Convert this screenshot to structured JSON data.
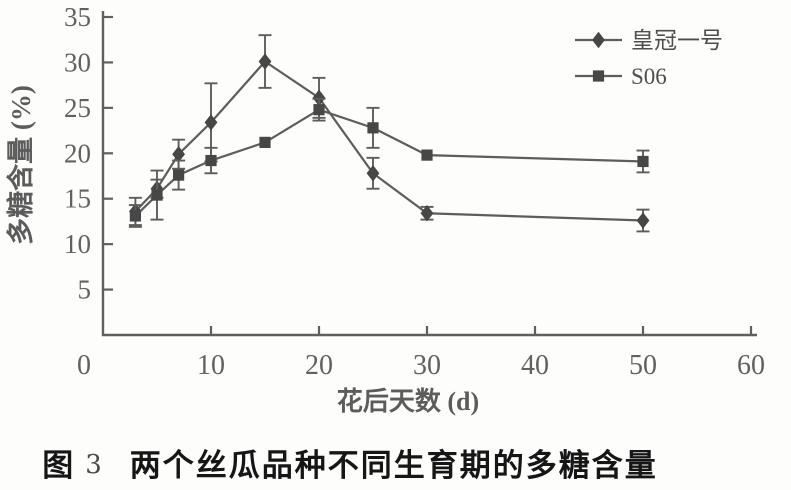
{
  "caption": {
    "prefix": "图",
    "number": "3",
    "text": "两个丝瓜品种不同生育期的多糖含量"
  },
  "chart_data": {
    "type": "line",
    "title": "图 3 两个丝瓜品种不同生育期的多糖含量",
    "xlabel": "花后天数 (d)",
    "ylabel": "多糖含量 (%)",
    "xlim": [
      0,
      60
    ],
    "ylim": [
      0,
      35
    ],
    "xticks": [
      0,
      10,
      20,
      30,
      40,
      50,
      60
    ],
    "yticks": [
      5,
      10,
      15,
      20,
      25,
      30,
      35
    ],
    "grid": false,
    "legend_position": "top-right",
    "error_bars": true,
    "x": [
      3,
      5,
      7,
      10,
      15,
      20,
      25,
      30,
      50
    ],
    "series": [
      {
        "name": "皇冠一号",
        "marker": "diamond",
        "values": [
          13.6,
          16.1,
          19.9,
          23.4,
          30.1,
          26.1,
          17.8,
          13.4,
          12.6
        ],
        "errors": [
          1.5,
          1.0,
          1.6,
          4.3,
          2.9,
          2.2,
          1.7,
          0.7,
          1.2
        ]
      },
      {
        "name": "S06",
        "marker": "square",
        "values": [
          13.1,
          15.4,
          17.6,
          19.2,
          21.2,
          24.8,
          22.8,
          19.8,
          19.1
        ],
        "errors": [
          1.2,
          2.7,
          1.6,
          1.4,
          0,
          1.2,
          2.2,
          0,
          1.2
        ]
      }
    ],
    "colors": {
      "axis": "#5f5f5f",
      "line": "#5d5d5d",
      "marker": "#474747",
      "tick_text": "#616161",
      "axis_label": "#5c5c5c",
      "legend_text": "#4e4e4e",
      "background": "#fdfdfc",
      "caption_text": "#161616"
    }
  }
}
